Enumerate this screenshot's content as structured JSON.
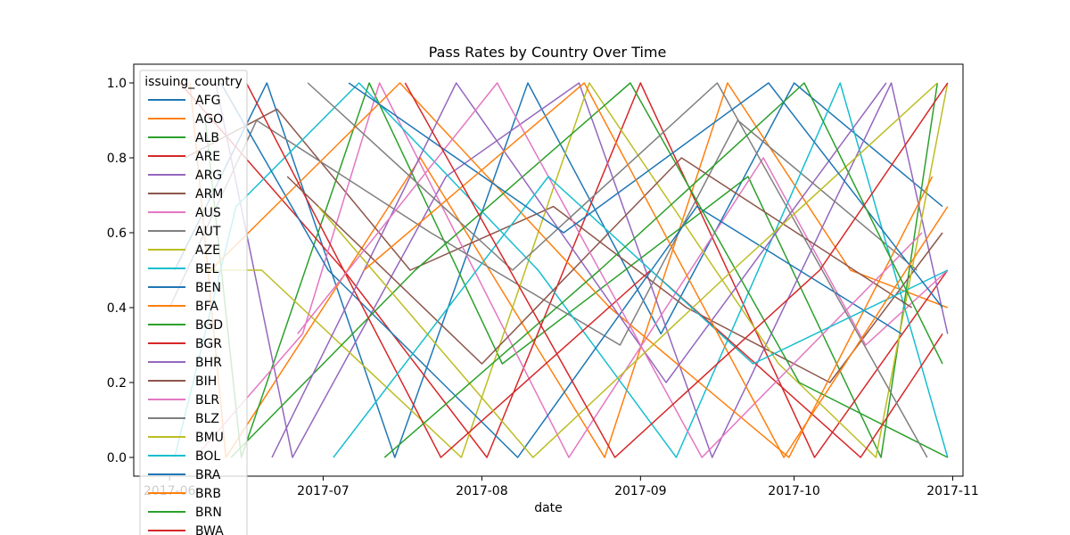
{
  "chart_data": {
    "type": "line",
    "title": "Pass Rates by Country Over Time",
    "xlabel": "date",
    "ylabel": "",
    "x_range": [
      "2017-05-25",
      "2017-11-03"
    ],
    "ylim": [
      -0.05,
      1.05
    ],
    "x_ticks": [
      {
        "date": "2017-06-01",
        "label": "2017-06"
      },
      {
        "date": "2017-07-01",
        "label": "2017-07"
      },
      {
        "date": "2017-08-01",
        "label": "2017-08"
      },
      {
        "date": "2017-09-01",
        "label": "2017-09"
      },
      {
        "date": "2017-10-01",
        "label": "2017-10"
      },
      {
        "date": "2017-11-01",
        "label": "2017-11"
      }
    ],
    "y_ticks": [
      {
        "value": 0.0,
        "label": "0.0"
      },
      {
        "value": 0.2,
        "label": "0.2"
      },
      {
        "value": 0.4,
        "label": "0.4"
      },
      {
        "value": 0.6,
        "label": "0.6"
      },
      {
        "value": 0.8,
        "label": "0.8"
      },
      {
        "value": 1.0,
        "label": "1.0"
      }
    ],
    "grid": false,
    "legend": {
      "title": "issuing_country",
      "placement": "upper-left"
    },
    "series": [
      {
        "name": "AFG",
        "color": "#1f77b4",
        "points": [
          [
            "2017-06-02",
            0.5
          ],
          [
            "2017-06-20",
            1.0
          ],
          [
            "2017-07-15",
            0.0
          ],
          [
            "2017-08-10",
            1.0
          ],
          [
            "2017-09-05",
            0.33
          ],
          [
            "2017-10-01",
            1.0
          ],
          [
            "2017-10-30",
            0.67
          ]
        ]
      },
      {
        "name": "AGO",
        "color": "#ff7f0e",
        "points": [
          [
            "2017-06-05",
            1.0
          ],
          [
            "2017-06-12",
            0.0
          ],
          [
            "2017-07-20",
            0.8
          ],
          [
            "2017-08-25",
            0.0
          ],
          [
            "2017-09-18",
            1.0
          ],
          [
            "2017-10-12",
            0.5
          ],
          [
            "2017-10-31",
            0.4
          ]
        ]
      },
      {
        "name": "ALB",
        "color": "#2ca02c",
        "points": [
          [
            "2017-06-08",
            0.9
          ],
          [
            "2017-06-15",
            0.0
          ],
          [
            "2017-07-10",
            1.0
          ],
          [
            "2017-08-05",
            0.25
          ],
          [
            "2017-09-22",
            0.75
          ],
          [
            "2017-10-18",
            0.0
          ],
          [
            "2017-10-29",
            1.0
          ]
        ]
      },
      {
        "name": "ARE",
        "color": "#d62728",
        "points": [
          [
            "2017-06-03",
            1.0
          ],
          [
            "2017-07-05",
            0.5
          ],
          [
            "2017-08-02",
            0.0
          ],
          [
            "2017-09-01",
            1.0
          ],
          [
            "2017-10-05",
            0.0
          ],
          [
            "2017-10-31",
            0.5
          ]
        ]
      },
      {
        "name": "ARG",
        "color": "#9467bd",
        "points": [
          [
            "2017-06-10",
            1.0
          ],
          [
            "2017-06-25",
            0.0
          ],
          [
            "2017-07-25",
            0.75
          ],
          [
            "2017-08-20",
            1.0
          ],
          [
            "2017-09-15",
            0.0
          ],
          [
            "2017-10-20",
            1.0
          ],
          [
            "2017-10-31",
            0.33
          ]
        ]
      },
      {
        "name": "ARM",
        "color": "#8c564b",
        "points": [
          [
            "2017-06-04",
            0.8
          ],
          [
            "2017-06-22",
            0.93
          ],
          [
            "2017-07-18",
            0.5
          ],
          [
            "2017-08-15",
            0.67
          ],
          [
            "2017-09-10",
            0.4
          ],
          [
            "2017-10-08",
            0.2
          ],
          [
            "2017-10-30",
            0.6
          ]
        ]
      },
      {
        "name": "AUS",
        "color": "#e377c2",
        "points": [
          [
            "2017-06-06",
            0.0
          ],
          [
            "2017-06-27",
            0.33
          ],
          [
            "2017-07-12",
            1.0
          ],
          [
            "2017-08-18",
            0.0
          ],
          [
            "2017-09-25",
            0.8
          ],
          [
            "2017-10-15",
            0.3
          ],
          [
            "2017-10-31",
            0.5
          ]
        ]
      },
      {
        "name": "AUT",
        "color": "#7f7f7f",
        "points": [
          [
            "2017-06-01",
            0.4
          ],
          [
            "2017-06-18",
            0.9
          ],
          [
            "2017-07-22",
            0.6
          ],
          [
            "2017-08-28",
            0.3
          ],
          [
            "2017-09-20",
            0.9
          ],
          [
            "2017-10-25",
            0.5
          ]
        ]
      },
      {
        "name": "AZE",
        "color": "#bcbd22",
        "points": [
          [
            "2017-06-07",
            0.5
          ],
          [
            "2017-06-19",
            0.5
          ],
          [
            "2017-07-28",
            0.0
          ],
          [
            "2017-08-22",
            1.0
          ],
          [
            "2017-09-28",
            0.25
          ],
          [
            "2017-10-17",
            0.0
          ],
          [
            "2017-10-31",
            1.0
          ]
        ]
      },
      {
        "name": "BEL",
        "color": "#17becf",
        "points": [
          [
            "2017-06-02",
            0.0
          ],
          [
            "2017-06-14",
            0.67
          ],
          [
            "2017-07-08",
            1.0
          ],
          [
            "2017-08-12",
            0.5
          ],
          [
            "2017-09-08",
            0.0
          ],
          [
            "2017-10-10",
            1.0
          ],
          [
            "2017-10-31",
            0.0
          ]
        ]
      },
      {
        "name": "BEN",
        "color": "#1f77b4",
        "points": [
          [
            "2017-06-11",
            1.0
          ],
          [
            "2017-07-02",
            0.5
          ],
          [
            "2017-08-08",
            0.0
          ],
          [
            "2017-09-12",
            0.67
          ],
          [
            "2017-10-22",
            0.33
          ]
        ]
      },
      {
        "name": "BFA",
        "color": "#ff7f0e",
        "points": [
          [
            "2017-06-09",
            0.5
          ],
          [
            "2017-07-16",
            1.0
          ],
          [
            "2017-08-26",
            0.4
          ],
          [
            "2017-09-30",
            0.0
          ],
          [
            "2017-10-28",
            0.75
          ]
        ]
      },
      {
        "name": "BGD",
        "color": "#2ca02c",
        "points": [
          [
            "2017-06-13",
            0.0
          ],
          [
            "2017-07-19",
            0.5
          ],
          [
            "2017-08-30",
            1.0
          ],
          [
            "2017-10-02",
            0.2
          ],
          [
            "2017-10-31",
            0.0
          ]
        ]
      },
      {
        "name": "BGR",
        "color": "#d62728",
        "points": [
          [
            "2017-06-16",
            1.0
          ],
          [
            "2017-07-24",
            0.0
          ],
          [
            "2017-09-03",
            0.5
          ],
          [
            "2017-10-14",
            0.0
          ],
          [
            "2017-10-30",
            0.33
          ]
        ]
      },
      {
        "name": "BHR",
        "color": "#9467bd",
        "points": [
          [
            "2017-06-21",
            0.0
          ],
          [
            "2017-07-27",
            1.0
          ],
          [
            "2017-09-06",
            0.2
          ],
          [
            "2017-10-19",
            1.0
          ]
        ]
      },
      {
        "name": "BIH",
        "color": "#8c564b",
        "points": [
          [
            "2017-06-24",
            0.75
          ],
          [
            "2017-08-01",
            0.25
          ],
          [
            "2017-09-09",
            0.8
          ],
          [
            "2017-10-24",
            0.4
          ]
        ]
      },
      {
        "name": "BLR",
        "color": "#e377c2",
        "points": [
          [
            "2017-06-26",
            0.33
          ],
          [
            "2017-08-04",
            1.0
          ],
          [
            "2017-09-13",
            0.0
          ],
          [
            "2017-10-26",
            0.6
          ]
        ]
      },
      {
        "name": "BLZ",
        "color": "#7f7f7f",
        "points": [
          [
            "2017-06-28",
            1.0
          ],
          [
            "2017-08-07",
            0.5
          ],
          [
            "2017-09-16",
            1.0
          ],
          [
            "2017-10-27",
            0.0
          ]
        ]
      },
      {
        "name": "BMU",
        "color": "#bcbd22",
        "points": [
          [
            "2017-06-30",
            0.67
          ],
          [
            "2017-08-11",
            0.0
          ],
          [
            "2017-09-19",
            0.5
          ],
          [
            "2017-10-29",
            1.0
          ]
        ]
      },
      {
        "name": "BOL",
        "color": "#17becf",
        "points": [
          [
            "2017-07-03",
            0.0
          ],
          [
            "2017-08-14",
            0.75
          ],
          [
            "2017-09-23",
            0.25
          ],
          [
            "2017-10-31",
            0.5
          ]
        ]
      },
      {
        "name": "BRA",
        "color": "#1f77b4",
        "points": [
          [
            "2017-07-06",
            1.0
          ],
          [
            "2017-08-17",
            0.6
          ],
          [
            "2017-09-26",
            1.0
          ],
          [
            "2017-10-30",
            0.4
          ]
        ]
      },
      {
        "name": "BRB",
        "color": "#ff7f0e",
        "points": [
          [
            "2017-07-09",
            0.5
          ],
          [
            "2017-08-21",
            1.0
          ],
          [
            "2017-09-29",
            0.0
          ],
          [
            "2017-10-31",
            0.67
          ]
        ]
      },
      {
        "name": "BRN",
        "color": "#2ca02c",
        "points": [
          [
            "2017-07-13",
            0.0
          ],
          [
            "2017-08-24",
            0.5
          ],
          [
            "2017-10-03",
            1.0
          ],
          [
            "2017-10-30",
            0.25
          ]
        ]
      },
      {
        "name": "BWA",
        "color": "#d62728",
        "points": [
          [
            "2017-07-17",
            1.0
          ],
          [
            "2017-08-27",
            0.0
          ],
          [
            "2017-10-06",
            0.5
          ],
          [
            "2017-10-31",
            1.0
          ]
        ]
      }
    ]
  }
}
